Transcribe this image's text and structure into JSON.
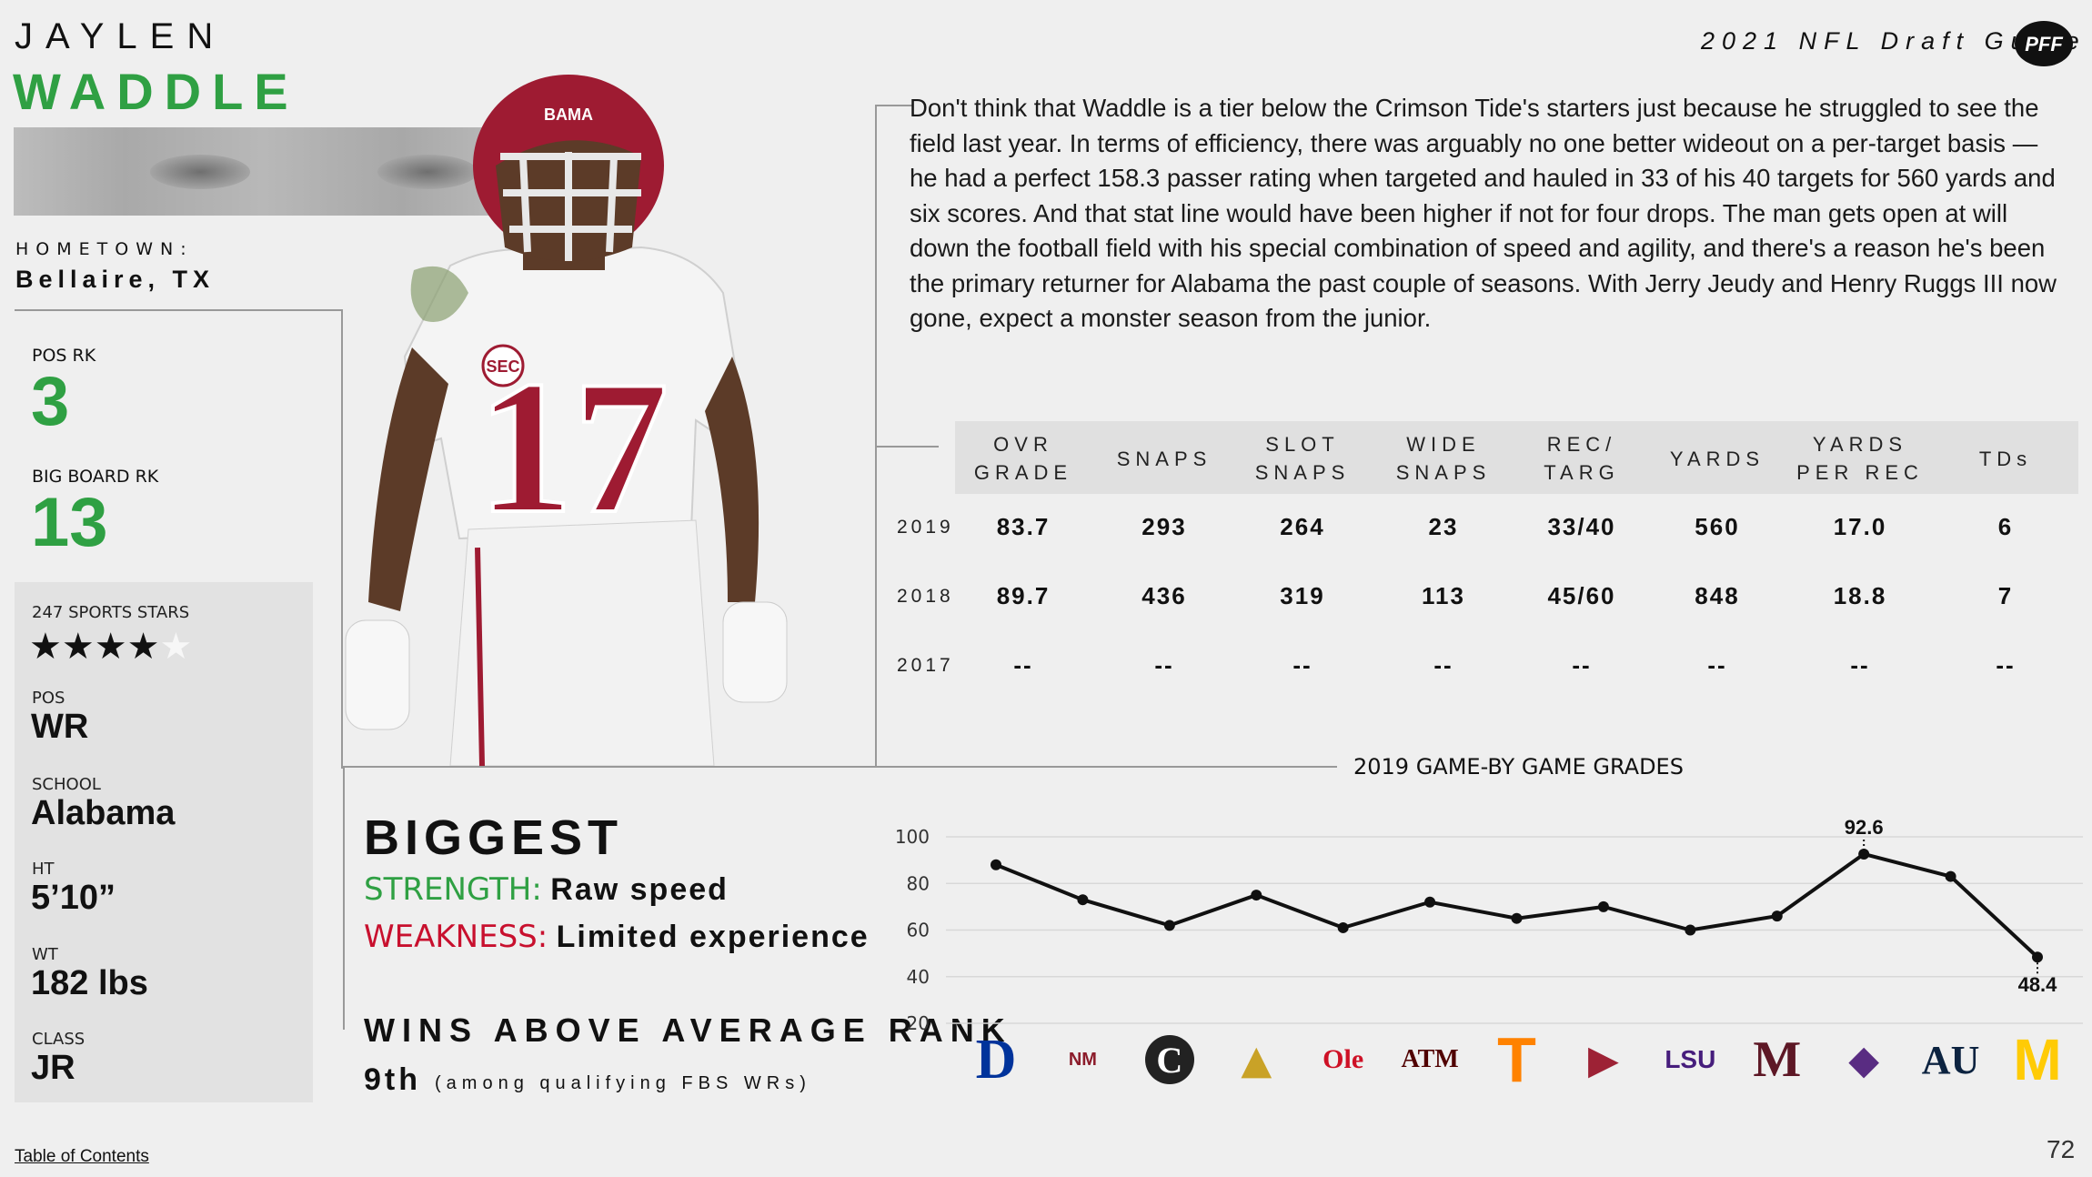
{
  "player": {
    "first_name": "JAYLEN",
    "last_name": "WADDLE"
  },
  "hometown": {
    "label": "HOMETOWN:",
    "value": "Bellaire, TX"
  },
  "rankings": {
    "pos_rk_label": "POS RK",
    "pos_rk": "3",
    "big_board_label": "BIG BOARD RK",
    "big_board": "13"
  },
  "info": {
    "stars_label": "247 SPORTS STARS",
    "stars": 4,
    "stars_max": 5,
    "pos_label": "POS",
    "pos": "WR",
    "school_label": "SCHOOL",
    "school": "Alabama",
    "ht_label": "HT",
    "ht": "5’10”",
    "wt_label": "WT",
    "wt": "182 lbs",
    "class_label": "CLASS",
    "class": "JR"
  },
  "header": {
    "guide_title": "2021 NFL Draft Guide",
    "logo_text": "PFF"
  },
  "bio": "Don't think that Waddle is a tier below the Crimson Tide's starters just because he struggled to see the field last year. In terms of efficiency, there was arguably no one better wideout on a per-target basis — he had a perfect 158.3 passer rating when targeted and hauled in 33 of his 40 targets for 560 yards and six scores. And that stat line would have been higher if not for four drops. The man gets open at will down the football field with his special combination of speed and agility, and there's a reason he's been the primary returner for Alabama the past couple of seasons. With Jerry Jeudy and Henry Ruggs III now gone, expect a monster season from the junior.",
  "stats_table": {
    "headers": [
      [
        "OVR",
        "GRADE"
      ],
      [
        "SNAPS",
        ""
      ],
      [
        "SLOT",
        "SNAPS"
      ],
      [
        "WIDE",
        "SNAPS"
      ],
      [
        "REC/",
        "TARG"
      ],
      [
        "YARDS",
        ""
      ],
      [
        "YARDS",
        "PER REC"
      ],
      [
        "TDs",
        ""
      ]
    ],
    "rows": [
      {
        "year": "2019",
        "values": [
          "83.7",
          "293",
          "264",
          "23",
          "33/40",
          "560",
          "17.0",
          "6"
        ]
      },
      {
        "year": "2018",
        "values": [
          "89.7",
          "436",
          "319",
          "113",
          "45/60",
          "848",
          "18.8",
          "7"
        ]
      },
      {
        "year": "2017",
        "values": [
          "--",
          "--",
          "--",
          "--",
          "--",
          "--",
          "--",
          "--"
        ]
      }
    ]
  },
  "biggest": {
    "title": "BIGGEST",
    "strength_label": "STRENGTH:",
    "strength": "Raw speed",
    "weakness_label": "WEAKNESS:",
    "weakness": "Limited experience"
  },
  "war": {
    "title": "WINS ABOVE AVERAGE RANK",
    "value": "9th",
    "note": "(among qualifying FBS WRs)"
  },
  "chart_data": {
    "type": "line",
    "title": "2019 GAME-BY GAME GRADES",
    "xlabel": "",
    "ylabel": "",
    "ylim": [
      20,
      100
    ],
    "yticks": [
      100,
      80,
      60,
      40,
      20
    ],
    "grid": true,
    "categories": [
      "Duke",
      "New Mexico State",
      "South Carolina",
      "Southern Miss",
      "Ole Miss",
      "Texas A&M",
      "Tennessee",
      "Arkansas",
      "LSU",
      "Mississippi State",
      "Western Carolina",
      "Auburn",
      "Michigan"
    ],
    "values": [
      88,
      73,
      62,
      75,
      61,
      72,
      65,
      70,
      60,
      66,
      92.6,
      83,
      48.4
    ],
    "annotations": [
      {
        "index": 10,
        "label": "92.6"
      },
      {
        "index": 12,
        "label": "48.4"
      }
    ]
  },
  "footer": {
    "toc": "Table of Contents",
    "page": "72"
  },
  "colors": {
    "accent_green": "#2fa043",
    "accent_red": "#c8102e",
    "crimson": "#9e1b32"
  }
}
